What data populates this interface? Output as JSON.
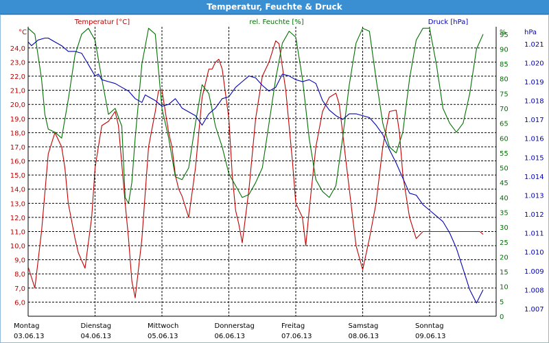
{
  "window": {
    "title": "Temperatur, Feuchte & Druck"
  },
  "colors": {
    "temperature": "#c00000",
    "humidity": "#007000",
    "pressure": "#0000b0",
    "grid": "#000000",
    "title_bar": "#3a8fd3"
  },
  "chart_data": {
    "type": "line",
    "title": "Temperatur, Feuchte & Druck",
    "grid": true,
    "x_labels": [
      {
        "day": "Montag",
        "date": "03.06.13"
      },
      {
        "day": "Dienstag",
        "date": "04.06.13"
      },
      {
        "day": "Mittwoch",
        "date": "05.06.13"
      },
      {
        "day": "Donnerstag",
        "date": "06.06.13"
      },
      {
        "day": "Freitag",
        "date": "07.06.13"
      },
      {
        "day": "Samstag",
        "date": "08.06.13"
      },
      {
        "day": "Sonntag",
        "date": "09.06.13"
      }
    ],
    "axes": {
      "temperature": {
        "label": "Temperatur [°C]",
        "unit": "°C",
        "range": [
          5.0,
          25.5
        ],
        "ticks": [
          "6,0",
          "7,0",
          "8,0",
          "9,0",
          "10,0",
          "11,0",
          "12,0",
          "13,0",
          "14,0",
          "15,0",
          "16,0",
          "17,0",
          "18,0",
          "19,0",
          "20,0",
          "21,0",
          "22,0",
          "23,0",
          "24,0"
        ]
      },
      "humidity": {
        "label": "rel. Feuchte [%]",
        "unit": "%",
        "range": [
          0,
          97.5
        ],
        "ticks": [
          "0",
          "5",
          "10",
          "15",
          "20",
          "25",
          "30",
          "35",
          "40",
          "45",
          "50",
          "55",
          "60",
          "65",
          "70",
          "75",
          "80",
          "85",
          "90",
          "95"
        ]
      },
      "pressure": {
        "label": "Druck [hPa]",
        "unit": "hPa",
        "range": [
          1006.6,
          1021.9
        ],
        "ticks": [
          "1.007",
          "1.008",
          "1.009",
          "1.010",
          "1.011",
          "1.012",
          "1.013",
          "1.014",
          "1.015",
          "1.016",
          "1.017",
          "1.018",
          "1.019",
          "1.020",
          "1.021"
        ]
      }
    },
    "series": [
      {
        "name": "Temperatur [°C]",
        "axis": "temperature",
        "x": [
          0,
          0.1,
          0.2,
          0.3,
          0.4,
          0.5,
          0.55,
          0.6,
          0.7,
          0.75,
          0.85,
          0.95,
          1.0,
          1.1,
          1.2,
          1.3,
          1.35,
          1.45,
          1.5,
          1.55,
          1.6,
          1.7,
          1.8,
          1.9,
          1.95,
          2.0,
          2.1,
          2.15,
          2.2,
          2.25,
          2.3,
          2.4,
          2.5,
          2.6,
          2.65,
          2.7,
          2.75,
          2.8,
          2.85,
          2.9,
          3.0,
          3.05,
          3.1,
          3.15,
          3.2,
          3.3,
          3.4,
          3.5,
          3.6,
          3.7,
          3.75,
          3.85,
          3.95,
          4.0,
          4.1,
          4.15,
          4.2,
          4.3,
          4.4,
          4.5,
          4.6,
          4.65,
          4.75,
          4.85,
          4.9,
          5.0,
          5.1,
          5.2,
          5.3,
          5.4,
          5.5,
          5.55,
          5.6,
          5.7,
          5.8,
          5.9,
          6.0,
          6.05,
          6.1,
          6.2,
          6.3,
          6.4,
          6.5,
          6.6,
          6.75,
          6.8
        ],
        "values": [
          8.5,
          7.0,
          11.0,
          16.5,
          18.0,
          17.0,
          15.5,
          13.0,
          10.5,
          9.5,
          8.4,
          12.0,
          15.5,
          18.5,
          18.8,
          19.5,
          18.5,
          13.0,
          10.5,
          7.5,
          6.3,
          10.5,
          17.0,
          19.5,
          21.0,
          21.0,
          18.0,
          17.0,
          15.0,
          14.0,
          13.5,
          12.0,
          15.5,
          20.5,
          21.5,
          22.5,
          22.5,
          23.0,
          23.2,
          22.5,
          19.0,
          15.0,
          12.5,
          11.5,
          10.2,
          14.0,
          19.0,
          22.0,
          23.0,
          24.5,
          24.3,
          21.0,
          16.0,
          13.0,
          12.0,
          10.0,
          12.5,
          17.0,
          19.5,
          20.5,
          20.8,
          20.0,
          16.0,
          12.0,
          10.0,
          8.3,
          10.5,
          13.0,
          17.0,
          19.5,
          19.6,
          18.0,
          15.0,
          12.0,
          10.5,
          11.0,
          11.0,
          11.0,
          11.0,
          11.0,
          11.0,
          11.0,
          11.0,
          11.0,
          11.0,
          10.8
        ]
      },
      {
        "name": "rel. Feuchte [%]",
        "axis": "humidity",
        "x": [
          0,
          0.1,
          0.2,
          0.25,
          0.3,
          0.4,
          0.5,
          0.6,
          0.7,
          0.8,
          0.9,
          1.0,
          1.1,
          1.2,
          1.3,
          1.4,
          1.45,
          1.5,
          1.55,
          1.6,
          1.7,
          1.8,
          1.9,
          2.0,
          2.1,
          2.2,
          2.3,
          2.4,
          2.5,
          2.6,
          2.7,
          2.8,
          2.9,
          3.0,
          3.1,
          3.2,
          3.3,
          3.4,
          3.5,
          3.6,
          3.7,
          3.8,
          3.9,
          4.0,
          4.1,
          4.2,
          4.3,
          4.4,
          4.5,
          4.6,
          4.7,
          4.8,
          4.9,
          5.0,
          5.1,
          5.2,
          5.3,
          5.4,
          5.5,
          5.6,
          5.7,
          5.8,
          5.9,
          6.0,
          6.1,
          6.2,
          6.3,
          6.4,
          6.5,
          6.6,
          6.7,
          6.8
        ],
        "values": [
          97,
          95,
          80,
          68,
          63,
          62,
          60,
          73,
          88,
          95,
          97,
          93,
          80,
          68,
          70,
          64,
          40,
          38,
          45,
          60,
          85,
          97,
          95,
          70,
          60,
          47,
          46,
          50,
          65,
          78,
          75,
          64,
          57,
          48,
          44,
          40,
          41,
          45,
          50,
          65,
          80,
          92,
          96,
          94,
          80,
          60,
          46,
          42,
          40,
          44,
          60,
          78,
          92,
          97,
          96,
          80,
          65,
          57,
          55,
          62,
          80,
          93,
          97,
          97,
          85,
          70,
          65,
          62,
          65,
          75,
          90,
          95
        ]
      },
      {
        "name": "Druck [hPa]",
        "axis": "pressure",
        "x": [
          0,
          0.05,
          0.15,
          0.25,
          0.3,
          0.4,
          0.5,
          0.6,
          0.7,
          0.8,
          0.9,
          1.0,
          1.05,
          1.1,
          1.2,
          1.3,
          1.4,
          1.5,
          1.6,
          1.7,
          1.75,
          1.8,
          1.9,
          2.0,
          2.1,
          2.2,
          2.3,
          2.4,
          2.5,
          2.6,
          2.7,
          2.8,
          2.9,
          3.0,
          3.1,
          3.2,
          3.3,
          3.4,
          3.5,
          3.6,
          3.7,
          3.8,
          3.9,
          4.0,
          4.1,
          4.2,
          4.3,
          4.4,
          4.5,
          4.6,
          4.7,
          4.8,
          4.9,
          5.0,
          5.1,
          5.2,
          5.3,
          5.4,
          5.5,
          5.6,
          5.7,
          5.8,
          5.9,
          6.0,
          6.1,
          6.2,
          6.3,
          6.4,
          6.5,
          6.6,
          6.7,
          6.8
        ],
        "values": [
          1021.1,
          1020.9,
          1021.2,
          1021.3,
          1021.3,
          1021.1,
          1020.9,
          1020.6,
          1020.6,
          1020.5,
          1019.9,
          1019.3,
          1019.4,
          1019.1,
          1019.0,
          1018.9,
          1018.7,
          1018.5,
          1018.1,
          1017.9,
          1018.3,
          1018.2,
          1018.0,
          1017.7,
          1017.8,
          1018.1,
          1017.6,
          1017.4,
          1017.2,
          1016.7,
          1017.3,
          1017.6,
          1018.1,
          1018.2,
          1018.7,
          1019.0,
          1019.3,
          1019.2,
          1018.8,
          1018.5,
          1018.7,
          1019.4,
          1019.3,
          1019.1,
          1019.0,
          1019.1,
          1018.9,
          1018.0,
          1017.5,
          1017.2,
          1017.0,
          1017.3,
          1017.3,
          1017.2,
          1017.1,
          1016.7,
          1016.2,
          1015.4,
          1014.7,
          1013.9,
          1013.1,
          1013.0,
          1012.5,
          1012.2,
          1011.9,
          1011.6,
          1011.0,
          1010.2,
          1009.1,
          1008.0,
          1007.3,
          1008.0
        ]
      }
    ]
  }
}
